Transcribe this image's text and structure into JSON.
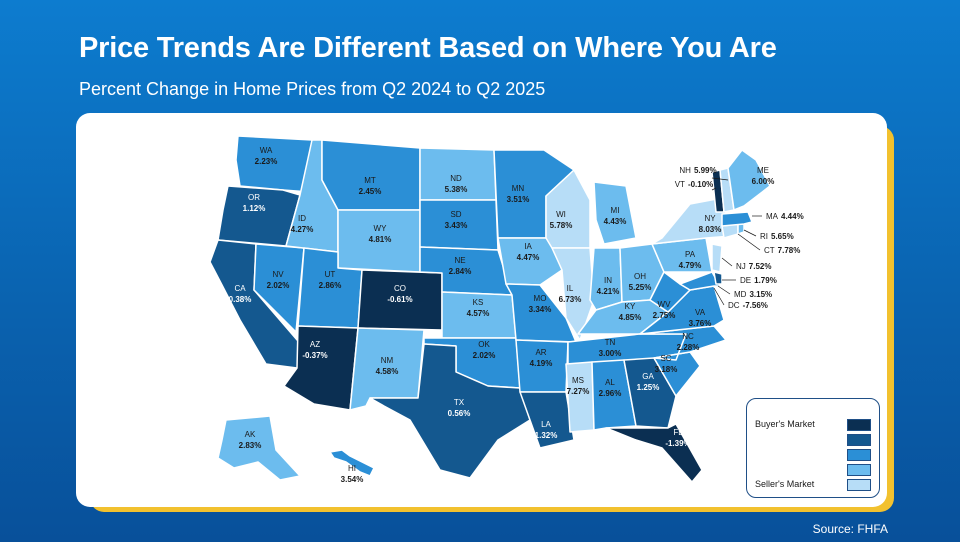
{
  "title": "Price Trends Are Different Based on Where You Are",
  "subtitle": "Percent Change in Home Prices from Q2 2024 to Q2 2025",
  "source": "Source: FHFA",
  "legend": {
    "top_label": "Buyer's Market",
    "bottom_label": "Seller's Market",
    "colors": [
      "#0b2f52",
      "#14588f",
      "#2b8fd6",
      "#6cbcee",
      "#b7ddf7"
    ]
  },
  "states": [
    {
      "abbr": "WA",
      "value": "2.23%"
    },
    {
      "abbr": "OR",
      "value": "1.12%"
    },
    {
      "abbr": "CA",
      "value": "0.38%"
    },
    {
      "abbr": "NV",
      "value": "2.02%"
    },
    {
      "abbr": "ID",
      "value": "4.27%"
    },
    {
      "abbr": "MT",
      "value": "2.45%"
    },
    {
      "abbr": "WY",
      "value": "4.81%"
    },
    {
      "abbr": "UT",
      "value": "2.86%"
    },
    {
      "abbr": "CO",
      "value": "-0.61%"
    },
    {
      "abbr": "AZ",
      "value": "-0.37%"
    },
    {
      "abbr": "NM",
      "value": "4.58%"
    },
    {
      "abbr": "ND",
      "value": "5.38%"
    },
    {
      "abbr": "SD",
      "value": "3.43%"
    },
    {
      "abbr": "NE",
      "value": "2.84%"
    },
    {
      "abbr": "KS",
      "value": "4.57%"
    },
    {
      "abbr": "OK",
      "value": "2.02%"
    },
    {
      "abbr": "TX",
      "value": "0.56%"
    },
    {
      "abbr": "MN",
      "value": "3.51%"
    },
    {
      "abbr": "IA",
      "value": "4.47%"
    },
    {
      "abbr": "MO",
      "value": "3.34%"
    },
    {
      "abbr": "AR",
      "value": "4.19%"
    },
    {
      "abbr": "LA",
      "value": "1.32%"
    },
    {
      "abbr": "WI",
      "value": "5.78%"
    },
    {
      "abbr": "IL",
      "value": "6.73%"
    },
    {
      "abbr": "MI",
      "value": "4.43%"
    },
    {
      "abbr": "IN",
      "value": "4.21%"
    },
    {
      "abbr": "OH",
      "value": "5.25%"
    },
    {
      "abbr": "KY",
      "value": "4.85%"
    },
    {
      "abbr": "TN",
      "value": "3.00%"
    },
    {
      "abbr": "MS",
      "value": "7.27%"
    },
    {
      "abbr": "AL",
      "value": "2.96%"
    },
    {
      "abbr": "GA",
      "value": "1.25%"
    },
    {
      "abbr": "FL",
      "value": "-1.39%"
    },
    {
      "abbr": "SC",
      "value": "3.18%"
    },
    {
      "abbr": "NC",
      "value": "2.28%"
    },
    {
      "abbr": "VA",
      "value": "3.76%"
    },
    {
      "abbr": "WV",
      "value": "2.75%"
    },
    {
      "abbr": "PA",
      "value": "4.79%"
    },
    {
      "abbr": "NY",
      "value": "8.03%"
    },
    {
      "abbr": "ME",
      "value": "6.00%"
    },
    {
      "abbr": "AK",
      "value": "2.83%"
    },
    {
      "abbr": "HI",
      "value": "3.54%"
    }
  ],
  "callouts": [
    {
      "abbr": "NH",
      "value": "5.99%"
    },
    {
      "abbr": "VT",
      "value": "-0.10%"
    },
    {
      "abbr": "MA",
      "value": "4.44%"
    },
    {
      "abbr": "RI",
      "value": "5.65%"
    },
    {
      "abbr": "CT",
      "value": "7.78%"
    },
    {
      "abbr": "NJ",
      "value": "7.52%"
    },
    {
      "abbr": "DE",
      "value": "1.79%"
    },
    {
      "abbr": "MD",
      "value": "3.15%"
    },
    {
      "abbr": "DC",
      "value": "-7.56%"
    }
  ]
}
